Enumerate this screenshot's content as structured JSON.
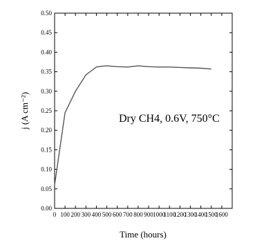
{
  "chart_data": {
    "type": "line",
    "xlabel": "Time (hours)",
    "ylabel": "j (A cm⁻²)",
    "annotation": "Dry CH4, 0.6V, 750°C",
    "xlim": [
      0,
      1700
    ],
    "ylim": [
      0,
      0.5
    ],
    "x_ticks": [
      "0",
      "100",
      "200",
      "300",
      "400",
      "500",
      "600",
      "700",
      "800",
      "900",
      "1000",
      "1100",
      "1200",
      "1300",
      "1400",
      "1500",
      "1600"
    ],
    "y_ticks": [
      "0.00",
      "0.05",
      "0.10",
      "0.15",
      "0.20",
      "0.25",
      "0.30",
      "0.35",
      "0.40",
      "0.45",
      "0.50"
    ],
    "grid": false,
    "series": [
      {
        "color": "#555555",
        "x": [
          0,
          100,
          200,
          300,
          350,
          400,
          450,
          500,
          600,
          700,
          800,
          900,
          1000,
          1100,
          1200,
          1300,
          1400,
          1500
        ],
        "y": [
          0.06,
          0.245,
          0.3,
          0.342,
          0.352,
          0.362,
          0.364,
          0.365,
          0.363,
          0.362,
          0.365,
          0.363,
          0.362,
          0.362,
          0.361,
          0.36,
          0.359,
          0.357
        ]
      }
    ]
  }
}
